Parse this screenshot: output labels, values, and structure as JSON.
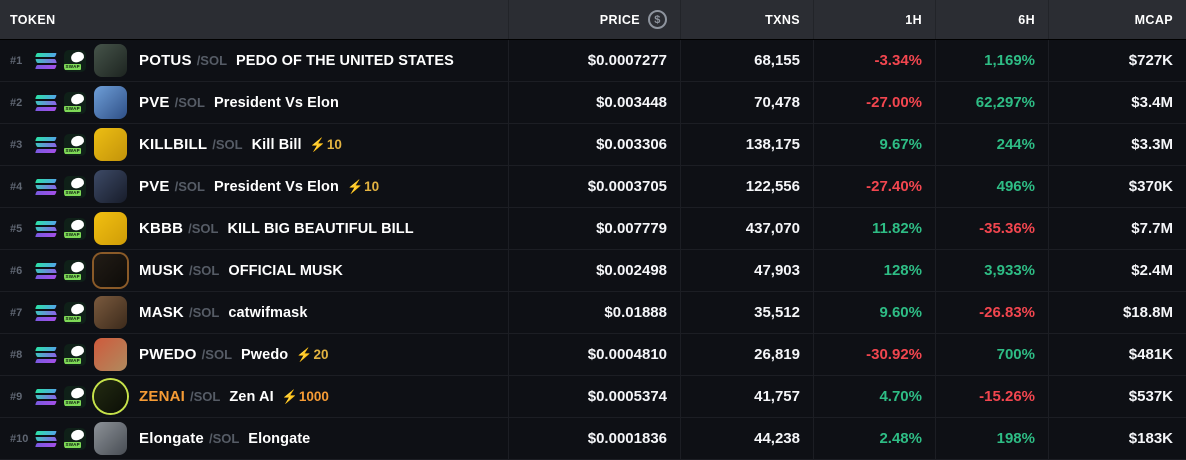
{
  "header": {
    "columns": [
      {
        "key": "token",
        "label": "TOKEN"
      },
      {
        "key": "price",
        "label": "PRICE"
      },
      {
        "key": "txns",
        "label": "TXNS"
      },
      {
        "key": "h1",
        "label": "1H"
      },
      {
        "key": "h6",
        "label": "6H"
      },
      {
        "key": "mcap",
        "label": "MCAP"
      }
    ],
    "price_icon": "$"
  },
  "icons": {
    "boost_bolt": "⚡",
    "chain": "solana-icon",
    "dex": "pumpswap-icon"
  },
  "dex_label": "SWAP",
  "colors": {
    "up": "#2ebd85",
    "down": "#f2464f",
    "boost": "#e3b341",
    "boost_super": "#f59b35",
    "header_bg": "#2b2d33",
    "row_bg": "#0e1015"
  },
  "rows": [
    {
      "rank": "#1",
      "symbol": "POTUS",
      "quote": "/SOL",
      "name": "PEDO OF THE UNITED STATES",
      "boost": null,
      "boost_tier": null,
      "price": "$0.0007277",
      "txns": "68,155",
      "h1": "-3.34%",
      "h6": "1,169%",
      "mcap": "$727K",
      "avatar": {
        "shape": "rounded",
        "from": "#46544a",
        "to": "#1d2420",
        "border": null
      }
    },
    {
      "rank": "#2",
      "symbol": "PVE",
      "quote": "/SOL",
      "name": "President Vs Elon",
      "boost": null,
      "boost_tier": null,
      "price": "$0.003448",
      "txns": "70,478",
      "h1": "-27.00%",
      "h6": "62,297%",
      "mcap": "$3.4M",
      "avatar": {
        "shape": "rounded",
        "from": "#6f9fd8",
        "to": "#2e4f86",
        "border": null
      }
    },
    {
      "rank": "#3",
      "symbol": "KILLBILL",
      "quote": "/SOL",
      "name": "Kill Bill",
      "boost": "10",
      "boost_tier": "normal",
      "price": "$0.003306",
      "txns": "138,175",
      "h1": "9.67%",
      "h6": "244%",
      "mcap": "$3.3M",
      "avatar": {
        "shape": "rounded",
        "from": "#edbe13",
        "to": "#c3930a",
        "border": null
      }
    },
    {
      "rank": "#4",
      "symbol": "PVE",
      "quote": "/SOL",
      "name": "President Vs Elon",
      "boost": "10",
      "boost_tier": "normal",
      "price": "$0.0003705",
      "txns": "122,556",
      "h1": "-27.40%",
      "h6": "496%",
      "mcap": "$370K",
      "avatar": {
        "shape": "rounded",
        "from": "#3d4a66",
        "to": "#171c2a",
        "border": null
      }
    },
    {
      "rank": "#5",
      "symbol": "KBBB",
      "quote": "/SOL",
      "name": "KILL BIG BEAUTIFUL BILL",
      "boost": null,
      "boost_tier": null,
      "price": "$0.007779",
      "txns": "437,070",
      "h1": "11.82%",
      "h6": "-35.36%",
      "mcap": "$7.7M",
      "avatar": {
        "shape": "rounded",
        "from": "#f2c011",
        "to": "#cf9c07",
        "border": null
      }
    },
    {
      "rank": "#6",
      "symbol": "MUSK",
      "quote": "/SOL",
      "name": "OFFICIAL MUSK",
      "boost": null,
      "boost_tier": null,
      "price": "$0.002498",
      "txns": "47,903",
      "h1": "128%",
      "h6": "3,933%",
      "mcap": "$2.4M",
      "avatar": {
        "shape": "rounded",
        "from": "#221c16",
        "to": "#0d0b08",
        "border": "#8a5a28"
      }
    },
    {
      "rank": "#7",
      "symbol": "MASK",
      "quote": "/SOL",
      "name": "catwifmask",
      "boost": null,
      "boost_tier": null,
      "price": "$0.01888",
      "txns": "35,512",
      "h1": "9.60%",
      "h6": "-26.83%",
      "mcap": "$18.8M",
      "avatar": {
        "shape": "rounded",
        "from": "#7a5a3e",
        "to": "#3c2a1b",
        "border": null
      }
    },
    {
      "rank": "#8",
      "symbol": "PWEDO",
      "quote": "/SOL",
      "name": "Pwedo",
      "boost": "20",
      "boost_tier": "normal",
      "price": "$0.0004810",
      "txns": "26,819",
      "h1": "-30.92%",
      "h6": "700%",
      "mcap": "$481K",
      "avatar": {
        "shape": "rounded",
        "from": "#cf5a3c",
        "to": "#b08a5e",
        "border": null
      }
    },
    {
      "rank": "#9",
      "symbol": "ZENAI",
      "quote": "/SOL",
      "name": "Zen AI",
      "boost": "1000",
      "boost_tier": "super",
      "price": "$0.0005374",
      "txns": "41,757",
      "h1": "4.70%",
      "h6": "-15.26%",
      "mcap": "$537K",
      "avatar": {
        "shape": "circle",
        "from": "#232b12",
        "to": "#0b0e06",
        "border": "#c6e24a"
      }
    },
    {
      "rank": "#10",
      "symbol": "Elongate",
      "quote": "/SOL",
      "name": "Elongate",
      "boost": null,
      "boost_tier": null,
      "price": "$0.0001836",
      "txns": "44,238",
      "h1": "2.48%",
      "h6": "198%",
      "mcap": "$183K",
      "avatar": {
        "shape": "rounded",
        "from": "#8d9298",
        "to": "#474c53",
        "border": null
      }
    }
  ]
}
